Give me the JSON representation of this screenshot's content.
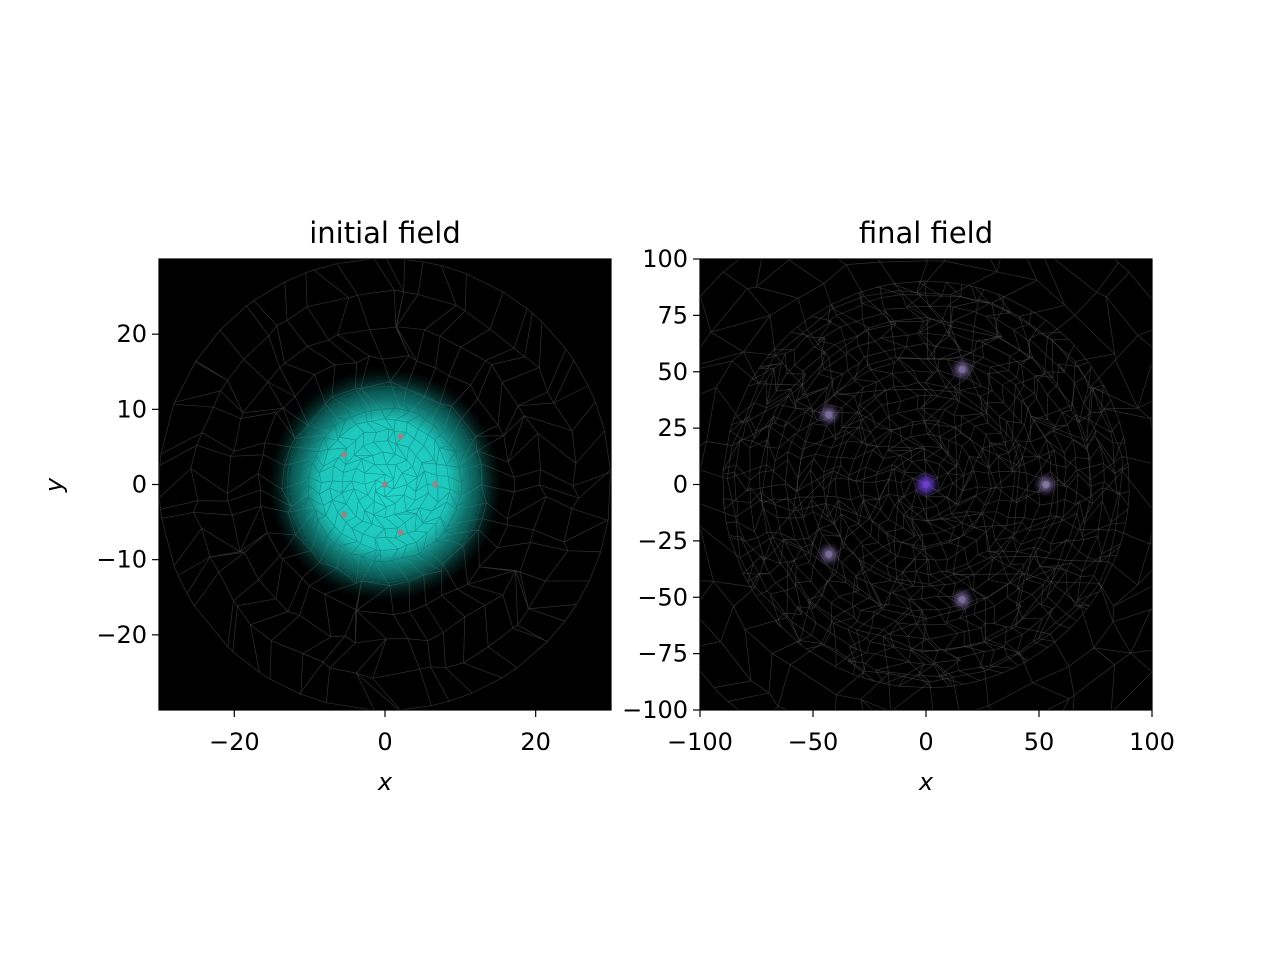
{
  "chart_data": [
    {
      "type": "heatmap",
      "title": "initial field",
      "xlabel": "x",
      "ylabel": "y",
      "xlim": [
        -30,
        30
      ],
      "ylim": [
        -30,
        30
      ],
      "xticks": [
        -20,
        0,
        20
      ],
      "yticks": [
        -20,
        -10,
        0,
        10,
        20
      ],
      "xtick_labels": [
        "−20",
        "0",
        "20"
      ],
      "ytick_labels": [
        "−20",
        "−10",
        "0",
        "10",
        "20"
      ],
      "background_color": "#000000",
      "mesh_color": "#5a5a5a",
      "mesh_domain_radius": 30,
      "field": {
        "shape": "gaussian-blob",
        "center": [
          0,
          0
        ],
        "radius": 10,
        "color": "#22d8cc"
      },
      "markers": [
        {
          "x": 0,
          "y": 0
        },
        {
          "x": 6.7,
          "y": 0
        },
        {
          "x": 2.1,
          "y": 6.4
        },
        {
          "x": -5.4,
          "y": 4.0
        },
        {
          "x": -5.4,
          "y": -4.0
        },
        {
          "x": 2.1,
          "y": -6.4
        }
      ],
      "marker_color": "#8a8a8a",
      "grid": false,
      "legend": false
    },
    {
      "type": "heatmap",
      "title": "final field",
      "xlabel": "x",
      "ylabel": "",
      "xlim": [
        -100,
        100
      ],
      "ylim": [
        -100,
        100
      ],
      "xticks": [
        -100,
        -50,
        0,
        50,
        100
      ],
      "yticks": [
        -100,
        -75,
        -50,
        -25,
        0,
        25,
        50,
        75,
        100
      ],
      "xtick_labels": [
        "−100",
        "−50",
        "0",
        "50",
        "100"
      ],
      "ytick_labels": [
        "−100",
        "−75",
        "−50",
        "−25",
        "0",
        "25",
        "50",
        "75",
        "100"
      ],
      "background_color": "#000000",
      "mesh_color": "#5a5a5a",
      "mesh_domain_radius": 90,
      "spots": [
        {
          "x": 0,
          "y": 0,
          "color": "#6a3fd0"
        },
        {
          "x": 53,
          "y": 0,
          "color": "#7a7a9a"
        },
        {
          "x": 16,
          "y": 51,
          "color": "#7a6a9a"
        },
        {
          "x": -43,
          "y": 31,
          "color": "#7a6a9a"
        },
        {
          "x": -43,
          "y": -31,
          "color": "#7a6a9a"
        },
        {
          "x": 16,
          "y": -51,
          "color": "#7a6a9a"
        }
      ],
      "grid": false,
      "legend": false
    }
  ]
}
